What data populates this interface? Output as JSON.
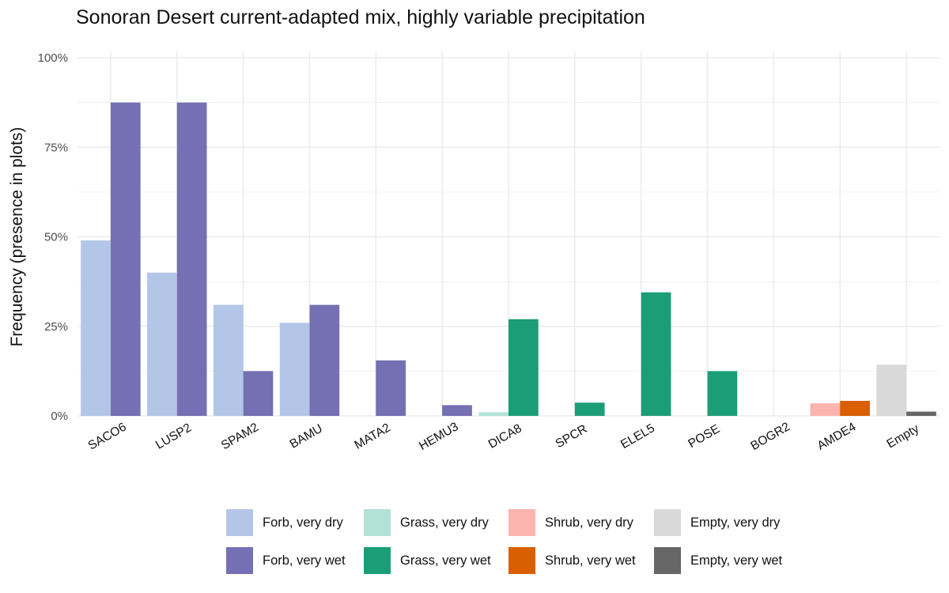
{
  "chart_data": {
    "type": "bar",
    "title": "Sonoran Desert current-adapted mix, highly variable precipitation",
    "xlabel": "",
    "ylabel": "Frequency (presence in plots)",
    "ylim": [
      0,
      1.02
    ],
    "yticks": [
      {
        "value": 0,
        "label": "0%"
      },
      {
        "value": 0.25,
        "label": "25%"
      },
      {
        "value": 0.5,
        "label": "50%"
      },
      {
        "value": 0.75,
        "label": "75%"
      },
      {
        "value": 1.0,
        "label": "100%"
      }
    ],
    "grid": true,
    "legend_position": "bottom",
    "categories": [
      "SACO6",
      "LUSP2",
      "SPAM2",
      "BAMU",
      "MATA2",
      "HEMU3",
      "DICA8",
      "SPCR",
      "ELEL5",
      "POSE",
      "BOGR2",
      "AMDE4",
      "Empty"
    ],
    "series": [
      {
        "name": "Forb, very dry",
        "color": "#b3c6e7",
        "values": [
          0.49,
          0.4,
          0.31,
          0.26,
          null,
          null,
          null,
          null,
          null,
          null,
          null,
          null,
          null
        ]
      },
      {
        "name": "Forb, very wet",
        "color": "#7570b3",
        "values": [
          0.875,
          0.875,
          0.125,
          0.31,
          0.155,
          0.03,
          null,
          null,
          null,
          null,
          null,
          null,
          null
        ]
      },
      {
        "name": "Grass, very dry",
        "color": "#b2e2d6",
        "values": [
          null,
          null,
          null,
          null,
          null,
          null,
          0.01,
          null,
          null,
          null,
          null,
          null,
          null
        ]
      },
      {
        "name": "Grass, very wet",
        "color": "#1b9e77",
        "values": [
          null,
          null,
          null,
          null,
          null,
          null,
          0.27,
          0.037,
          0.345,
          0.125,
          null,
          null,
          null
        ]
      },
      {
        "name": "Shrub, very dry",
        "color": "#fbb4ae",
        "values": [
          null,
          null,
          null,
          null,
          null,
          null,
          null,
          null,
          null,
          null,
          null,
          0.035,
          null
        ]
      },
      {
        "name": "Shrub, very wet",
        "color": "#d95f02",
        "values": [
          null,
          null,
          null,
          null,
          null,
          null,
          null,
          null,
          null,
          null,
          null,
          0.042,
          null
        ]
      },
      {
        "name": "Empty, very dry",
        "color": "#d9d9d9",
        "values": [
          null,
          null,
          null,
          null,
          null,
          null,
          null,
          null,
          null,
          null,
          null,
          null,
          0.143
        ]
      },
      {
        "name": "Empty, very wet",
        "color": "#666666",
        "values": [
          null,
          null,
          null,
          null,
          null,
          null,
          null,
          null,
          null,
          null,
          null,
          null,
          0.012
        ]
      }
    ],
    "legend": [
      {
        "label": "Forb, very dry",
        "color": "#b3c6e7"
      },
      {
        "label": "Forb, very wet",
        "color": "#7570b3"
      },
      {
        "label": "Grass, very dry",
        "color": "#b2e2d6"
      },
      {
        "label": "Grass, very wet",
        "color": "#1b9e77"
      },
      {
        "label": "Shrub, very dry",
        "color": "#fbb4ae"
      },
      {
        "label": "Shrub, very wet",
        "color": "#d95f02"
      },
      {
        "label": "Empty, very dry",
        "color": "#d9d9d9"
      },
      {
        "label": "Empty, very wet",
        "color": "#666666"
      }
    ]
  }
}
